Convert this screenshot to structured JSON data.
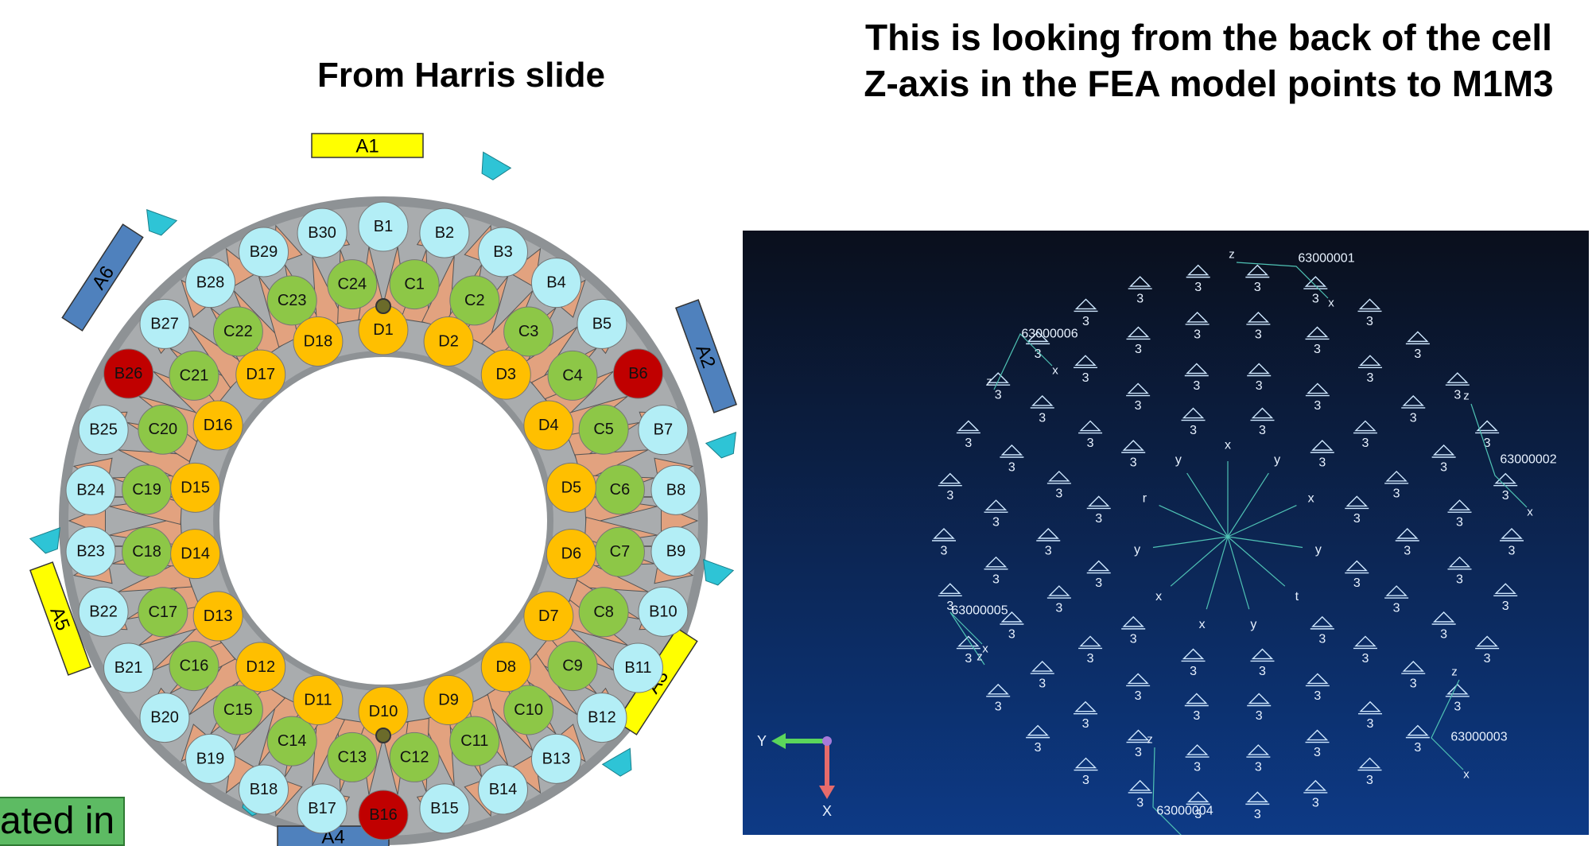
{
  "titles": {
    "left": "From Harris slide",
    "right_line1": "This is looking from the back of the cell",
    "right_line2": "Z-axis in the FEA model points to M1M3"
  },
  "note": "ated in",
  "colors": {
    "b_ring": "#b3eef6",
    "c_ring": "#8dc747",
    "d_ring": "#ffbf00",
    "highlight": "#c00000",
    "actuator_yellow": "#ffff00",
    "actuator_blue": "#4f81bd",
    "plate": "#a9acae",
    "rib": "#e2a27f",
    "fea_bg_top": "#0a0f1c",
    "fea_bg_bottom": "#0d3a86"
  },
  "diagram": {
    "actuators": [
      "A1",
      "A2",
      "A3",
      "A4",
      "A5",
      "A6"
    ],
    "b_ring": [
      "B1",
      "B2",
      "B3",
      "B4",
      "B5",
      "B6",
      "B7",
      "B8",
      "B9",
      "B10",
      "B11",
      "B12",
      "B13",
      "B14",
      "B15",
      "B16",
      "B17",
      "B18",
      "B19",
      "B20",
      "B21",
      "B22",
      "B23",
      "B24",
      "B25",
      "B26",
      "B27",
      "B28",
      "B29",
      "B30"
    ],
    "c_ring": [
      "C1",
      "C2",
      "C3",
      "C4",
      "C5",
      "C6",
      "C7",
      "C8",
      "C9",
      "C10",
      "C11",
      "C12",
      "C13",
      "C14",
      "C15",
      "C16",
      "C17",
      "C18",
      "C19",
      "C20",
      "C21",
      "C22",
      "C23",
      "C24"
    ],
    "d_ring": [
      "D1",
      "D2",
      "D3",
      "D4",
      "D5",
      "D6",
      "D7",
      "D8",
      "D9",
      "D10",
      "D11",
      "D12",
      "D13",
      "D14",
      "D15",
      "D16",
      "D17",
      "D18"
    ],
    "highlighted": [
      "B6",
      "B16",
      "B26"
    ]
  },
  "fea": {
    "node_labels": [
      "63000001",
      "63000002",
      "63000003",
      "63000004",
      "63000005",
      "63000006"
    ],
    "support_label": "3",
    "center_axes": [
      "x",
      "y",
      "x",
      "y",
      "t",
      "y",
      "x",
      "x",
      "y",
      "r",
      "y"
    ],
    "node_axis_labels": [
      "z",
      "x",
      "z",
      "x",
      "z",
      "x",
      "z",
      "x",
      "z",
      "x",
      "z",
      "x"
    ],
    "triad_labels": {
      "horizontal": "Y",
      "vertical": "X"
    }
  }
}
